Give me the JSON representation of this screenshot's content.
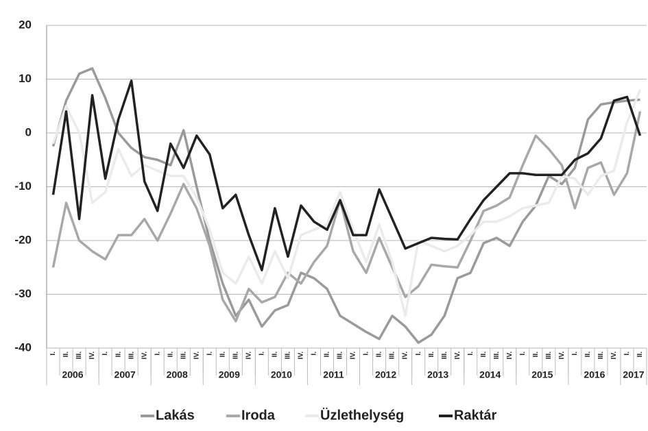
{
  "chart_data": {
    "type": "line",
    "categories": [
      "I.",
      "II.",
      "III.",
      "IV.",
      "I.",
      "II.",
      "III.",
      "IV.",
      "I.",
      "II.",
      "III.",
      "IV.",
      "I.",
      "II.",
      "III.",
      "IV.",
      "I.",
      "II.",
      "III.",
      "IV.",
      "I.",
      "II.",
      "III.",
      "IV.",
      "I.",
      "II.",
      "III.",
      "IV.",
      "I.",
      "II.",
      "III.",
      "IV.",
      "I.",
      "II.",
      "III.",
      "IV.",
      "I.",
      "II.",
      "III.",
      "IV.",
      "I.",
      "II.",
      "III.",
      "IV.",
      "I.",
      "II."
    ],
    "year_groups": [
      "2006",
      "2007",
      "2008",
      "2009",
      "2010",
      "2011",
      "2012",
      "2013",
      "2014",
      "2015",
      "2016",
      "2017"
    ],
    "series": [
      {
        "name": "Lakás",
        "color": "#9a9a9a",
        "values": [
          -2.5,
          6,
          11,
          12,
          6.5,
          0,
          -2.8,
          -4.5,
          -5,
          -6,
          0.5,
          -10,
          -20,
          -28,
          -34,
          -31,
          -36,
          -33,
          -32,
          -26,
          -27,
          -29,
          -34,
          -35.5,
          -37,
          -38.3,
          -34,
          -36,
          -39,
          -37.5,
          -34,
          -27,
          -26,
          -20.5,
          -19.5,
          -21,
          -16.5,
          -13.5,
          -8,
          -9.5,
          -6.5,
          2.5,
          5.3,
          5.7,
          6,
          6.2
        ]
      },
      {
        "name": "Iroda",
        "color": "#a8a8a8",
        "values": [
          -25,
          -13,
          -20,
          -22,
          -23.5,
          -19,
          -19,
          -16,
          -20,
          -15,
          -9.5,
          -14,
          -21,
          -31,
          -35,
          -29,
          -31.5,
          -30.5,
          -26,
          -28,
          -24,
          -21,
          -12.5,
          -22,
          -26,
          -19.5,
          -25,
          -30.5,
          -28.5,
          -24.5,
          -24.8,
          -25,
          -20,
          -14.5,
          -13.5,
          -12,
          -6,
          -0.5,
          -3,
          -6,
          -14,
          -6.5,
          -5.5,
          -11.5,
          -7.5,
          4
        ]
      },
      {
        "name": "Üzlethelység",
        "color": "#ebebeb",
        "values": [
          -2,
          5,
          0,
          -13,
          -11,
          -3,
          -8,
          -6,
          -7,
          -8,
          -8,
          -12,
          -18,
          -26,
          -28,
          -23,
          -28,
          -22,
          -27,
          -19,
          -18,
          -17,
          -11,
          -18,
          -24,
          -17,
          -24,
          -34,
          -20,
          -21,
          -22,
          -21,
          -19,
          -16.5,
          -16.5,
          -15.5,
          -14,
          -13.5,
          -13,
          -8,
          -8.5,
          -11.5,
          -8,
          -7,
          2,
          8
        ]
      },
      {
        "name": "Raktár",
        "color": "#222222",
        "values": [
          -11.5,
          4,
          -16,
          7,
          -8.5,
          2.5,
          9.7,
          -9,
          -14.5,
          -2,
          -6.5,
          -0.5,
          -4,
          -14,
          -11.5,
          -19,
          -25.5,
          -14,
          -23,
          -13.5,
          -16.5,
          -18,
          -12.5,
          -19,
          -19,
          -10.5,
          -16,
          -21.5,
          -20.5,
          -19.5,
          -19.7,
          -19.8,
          -16,
          -12.5,
          -10,
          -7.5,
          -7.5,
          -7.8,
          -7.8,
          -7.8,
          -5,
          -3.8,
          -1,
          6,
          6.7,
          -0.5
        ]
      }
    ],
    "ylim": [
      -40,
      20
    ],
    "yticks": [
      -40,
      -30,
      -20,
      -10,
      0,
      10,
      20
    ],
    "grid": true
  }
}
